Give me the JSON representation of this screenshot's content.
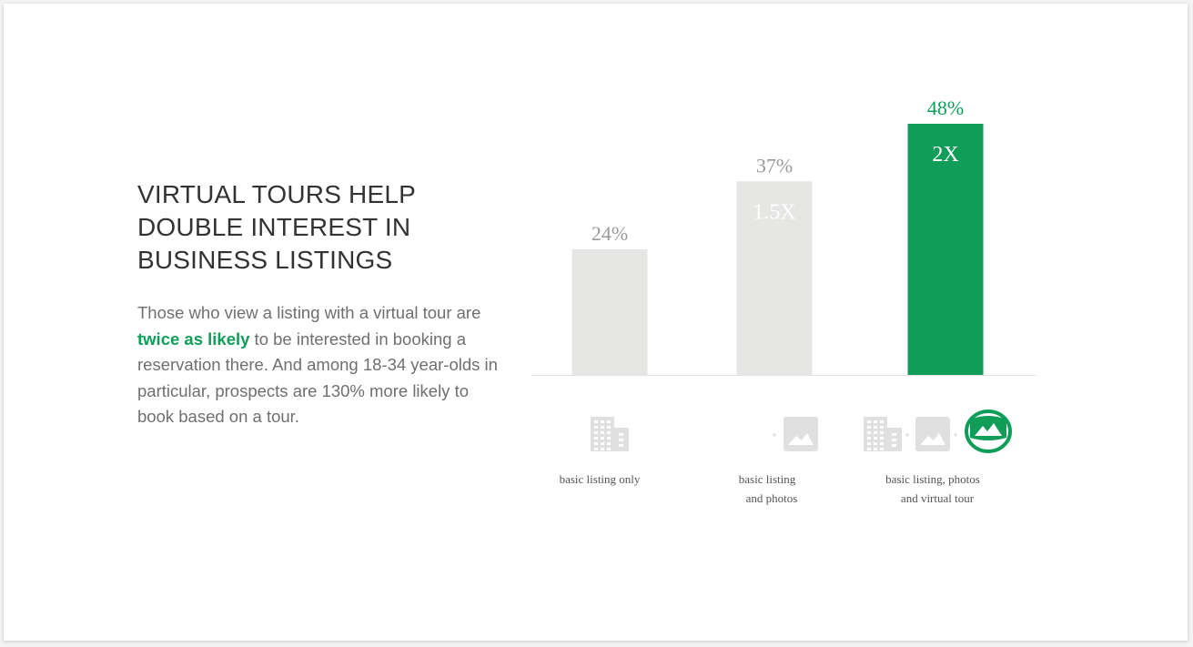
{
  "headline": "VIRTUAL TOURS HELP DOUBLE INTEREST IN BUSINESS LISTINGS",
  "body": {
    "before": "Those who view a listing with a virtual tour are ",
    "highlight": "twice as likely",
    "after": " to be interested in booking a reservation there. And among 18-34 year-olds in particular, prospects are 130% more likely to book based on a tour."
  },
  "colors": {
    "accent": "#0f9d58",
    "muted_bar": "#e6e6e4",
    "icon_grey": "#e0e0e0",
    "value_label": "#999999"
  },
  "chart_data": {
    "type": "bar",
    "categories": [
      "basic listing only",
      "basic listing and photos",
      "basic listing, photos and virtual tour"
    ],
    "values": [
      24,
      37,
      48
    ],
    "value_labels": [
      "24%",
      "37%",
      "48%"
    ],
    "multipliers": [
      "",
      "1.5X",
      "2X"
    ],
    "highlight_index": 2,
    "ylim": [
      0,
      48
    ],
    "grid": false,
    "legend": "none",
    "caption_lines": [
      [
        "basic listing only"
      ],
      [
        "basic listing",
        "and photos"
      ],
      [
        "basic listing, photos",
        "and virtual tour"
      ]
    ],
    "category_icons": [
      [
        "building-icon"
      ],
      [
        "building-icon",
        "plus-icon",
        "photo-icon"
      ],
      [
        "building-icon",
        "plus-icon",
        "photo-icon",
        "plus-icon",
        "vr-headset-icon"
      ]
    ]
  }
}
